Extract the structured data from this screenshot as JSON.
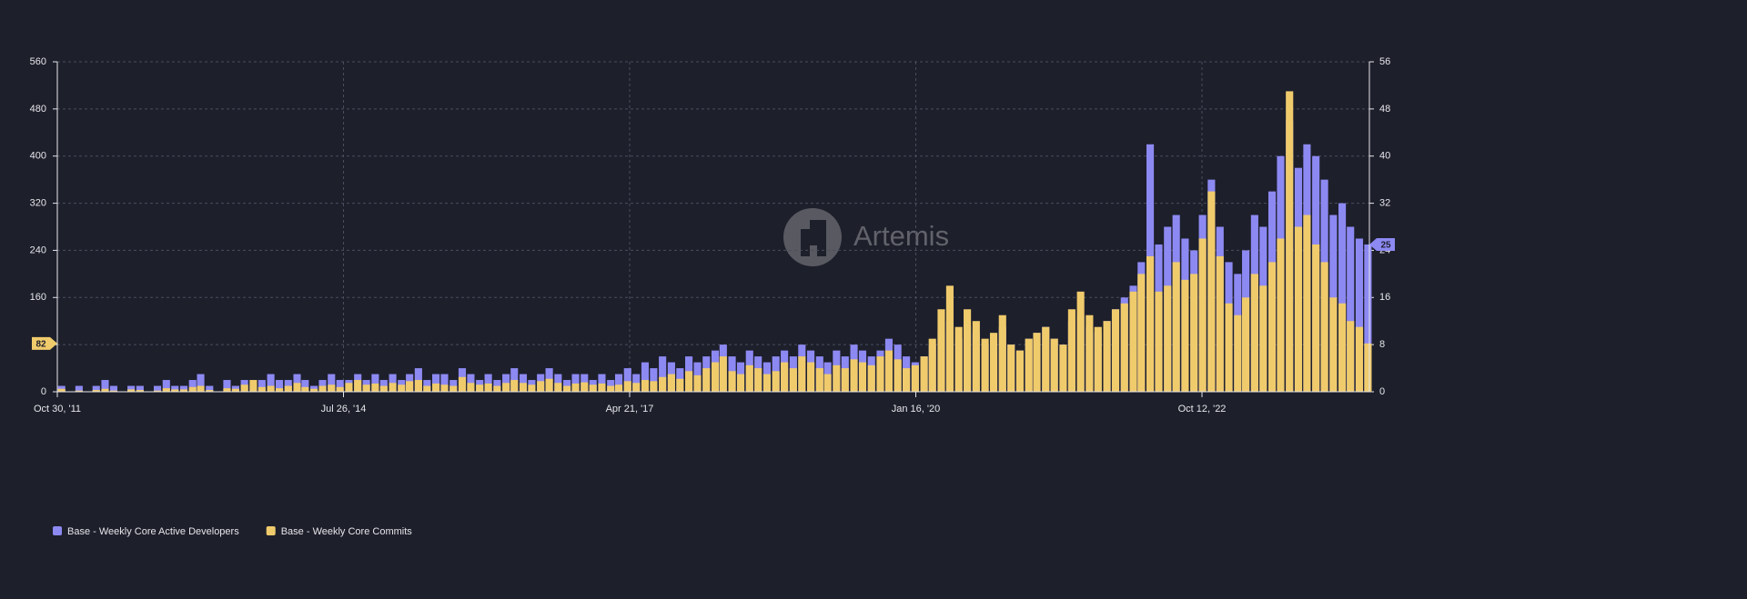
{
  "chart_data": {
    "type": "bar",
    "watermark": "Artemis",
    "xlim": [
      "2011-10-30",
      "2024-05-19"
    ],
    "xticks": [
      {
        "value": "2011-10-30",
        "label": "Oct 30, '11"
      },
      {
        "value": "2014-07-26",
        "label": "Jul 26, '14"
      },
      {
        "value": "2017-04-21",
        "label": "Apr 21, '17"
      },
      {
        "value": "2020-01-16",
        "label": "Jan 16, '20"
      },
      {
        "value": "2022-10-12",
        "label": "Oct 12, '22"
      }
    ],
    "ylim": [
      0,
      560
    ],
    "yticks": [
      0,
      80,
      160,
      240,
      320,
      400,
      480,
      560
    ],
    "y2lim": [
      0,
      56
    ],
    "y2ticks": [
      0,
      8,
      16,
      24,
      32,
      40,
      48,
      56
    ],
    "grid": true,
    "legend": "bottom-left",
    "x": [
      "2011-11-01",
      "2011-12-01",
      "2012-01-01",
      "2012-02-01",
      "2012-03-01",
      "2012-04-01",
      "2012-05-01",
      "2012-06-01",
      "2012-07-01",
      "2012-08-01",
      "2012-09-01",
      "2012-10-01",
      "2012-11-01",
      "2012-12-01",
      "2013-01-01",
      "2013-02-01",
      "2013-03-01",
      "2013-04-01",
      "2013-05-01",
      "2013-06-01",
      "2013-07-01",
      "2013-08-01",
      "2013-09-01",
      "2013-10-01",
      "2013-11-01",
      "2013-12-01",
      "2014-01-01",
      "2014-02-01",
      "2014-03-01",
      "2014-04-01",
      "2014-05-01",
      "2014-06-01",
      "2014-07-01",
      "2014-08-01",
      "2014-09-01",
      "2014-10-01",
      "2014-11-01",
      "2014-12-01",
      "2015-01-01",
      "2015-02-01",
      "2015-03-01",
      "2015-04-01",
      "2015-05-01",
      "2015-06-01",
      "2015-07-01",
      "2015-08-01",
      "2015-09-01",
      "2015-10-01",
      "2015-11-01",
      "2015-12-01",
      "2016-01-01",
      "2016-02-01",
      "2016-03-01",
      "2016-04-01",
      "2016-05-01",
      "2016-06-01",
      "2016-07-01",
      "2016-08-01",
      "2016-09-01",
      "2016-10-01",
      "2016-11-01",
      "2016-12-01",
      "2017-01-01",
      "2017-02-01",
      "2017-03-01",
      "2017-04-01",
      "2017-05-01",
      "2017-06-01",
      "2017-07-01",
      "2017-08-01",
      "2017-09-01",
      "2017-10-01",
      "2017-11-01",
      "2017-12-01",
      "2018-01-01",
      "2018-02-01",
      "2018-03-01",
      "2018-04-01",
      "2018-05-01",
      "2018-06-01",
      "2018-07-01",
      "2018-08-01",
      "2018-09-01",
      "2018-10-01",
      "2018-11-01",
      "2018-12-01",
      "2019-01-01",
      "2019-02-01",
      "2019-03-01",
      "2019-04-01",
      "2019-05-01",
      "2019-06-01",
      "2019-07-01",
      "2019-08-01",
      "2019-09-01",
      "2019-10-01",
      "2019-11-01",
      "2019-12-01",
      "2020-01-01",
      "2020-02-01",
      "2020-03-01",
      "2020-04-01",
      "2020-05-01",
      "2020-06-01",
      "2020-07-01",
      "2020-08-01",
      "2020-09-01",
      "2020-10-01",
      "2020-11-01",
      "2020-12-01",
      "2021-01-01",
      "2021-02-01",
      "2021-03-01",
      "2021-04-01",
      "2021-05-01",
      "2021-06-01",
      "2021-07-01",
      "2021-08-01",
      "2021-09-01",
      "2021-10-01",
      "2021-11-01",
      "2021-12-01",
      "2022-01-01",
      "2022-02-01",
      "2022-03-01",
      "2022-04-01",
      "2022-05-01",
      "2022-06-01",
      "2022-07-01",
      "2022-08-01",
      "2022-09-01",
      "2022-10-01",
      "2022-11-01",
      "2022-12-01",
      "2023-01-01",
      "2023-02-01",
      "2023-03-01",
      "2023-04-01",
      "2023-05-01",
      "2023-06-01",
      "2023-07-01",
      "2023-08-01",
      "2023-09-01",
      "2023-10-01",
      "2023-11-01",
      "2023-12-01",
      "2024-01-01",
      "2024-02-01",
      "2024-03-01",
      "2024-04-01",
      "2024-05-01"
    ],
    "series": [
      {
        "name": "Base - Weekly Core Active Developers",
        "color": "#8d89f2",
        "axis": "y2",
        "values": [
          1,
          0,
          1,
          0,
          1,
          2,
          1,
          0,
          1,
          1,
          0,
          1,
          2,
          1,
          1,
          2,
          3,
          1,
          0,
          2,
          1,
          2,
          1,
          2,
          3,
          2,
          2,
          3,
          2,
          1,
          2,
          3,
          2,
          2,
          3,
          2,
          3,
          2,
          3,
          2,
          3,
          4,
          2,
          3,
          3,
          2,
          4,
          3,
          2,
          3,
          2,
          3,
          4,
          3,
          2,
          3,
          4,
          3,
          2,
          3,
          3,
          2,
          3,
          2,
          3,
          4,
          3,
          5,
          4,
          6,
          5,
          4,
          6,
          5,
          6,
          7,
          8,
          6,
          5,
          7,
          6,
          5,
          6,
          7,
          6,
          8,
          7,
          6,
          5,
          7,
          6,
          8,
          7,
          6,
          7,
          9,
          8,
          6,
          5,
          6,
          8,
          10,
          12,
          9,
          11,
          10,
          8,
          9,
          11,
          8,
          7,
          9,
          10,
          11,
          9,
          8,
          12,
          13,
          11,
          10,
          12,
          14,
          16,
          18,
          22,
          42,
          25,
          28,
          30,
          26,
          24,
          30,
          36,
          28,
          22,
          20,
          24,
          30,
          28,
          34,
          40,
          46,
          38,
          42,
          40,
          36,
          30,
          32,
          28,
          26,
          25
        ]
      },
      {
        "name": "Base - Weekly Core Commits",
        "color": "#f0cb6c",
        "values": [
          5,
          0,
          2,
          0,
          3,
          5,
          2,
          0,
          4,
          3,
          0,
          2,
          6,
          4,
          4,
          8,
          10,
          3,
          0,
          6,
          5,
          12,
          20,
          8,
          10,
          6,
          10,
          15,
          8,
          5,
          10,
          12,
          8,
          15,
          20,
          12,
          14,
          10,
          15,
          12,
          18,
          20,
          10,
          14,
          12,
          10,
          25,
          15,
          12,
          14,
          10,
          15,
          20,
          15,
          12,
          18,
          22,
          15,
          10,
          14,
          16,
          12,
          14,
          10,
          12,
          18,
          15,
          20,
          18,
          25,
          30,
          22,
          35,
          28,
          40,
          50,
          60,
          35,
          30,
          45,
          40,
          30,
          35,
          50,
          40,
          60,
          50,
          40,
          30,
          45,
          40,
          55,
          50,
          45,
          60,
          70,
          55,
          40,
          45,
          60,
          90,
          140,
          180,
          110,
          140,
          120,
          90,
          100,
          130,
          80,
          70,
          90,
          100,
          110,
          90,
          80,
          140,
          170,
          130,
          110,
          120,
          140,
          150,
          170,
          200,
          230,
          170,
          180,
          220,
          190,
          200,
          260,
          340,
          230,
          150,
          130,
          160,
          200,
          180,
          220,
          260,
          510,
          280,
          300,
          250,
          220,
          160,
          150,
          120,
          110,
          82
        ]
      }
    ]
  }
}
